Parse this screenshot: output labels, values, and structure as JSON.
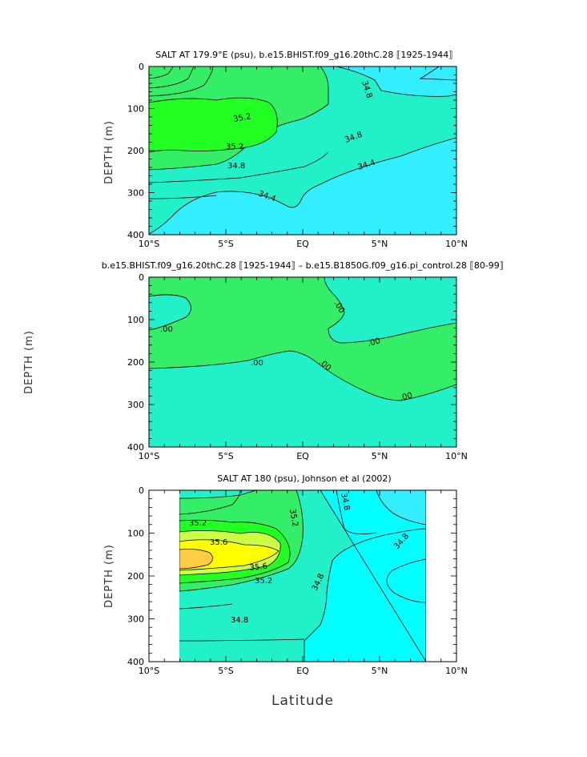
{
  "colors": {
    "cyan": "#33eeff",
    "aqua": "#00ffff",
    "sea": "#22f0c8",
    "green1": "#33ee66",
    "green2": "#22ff22",
    "yellowgreen": "#ccff44",
    "yellow": "#ffff00",
    "orange": "#ffcc44",
    "line": "#000000"
  },
  "x_label": "Latitude",
  "chart_data": [
    {
      "type": "contour",
      "title": "SALT AT 179.9°E (psu), b.e15.BHIST.f09_g16.20thC.28 ⟦1925-1944⟧",
      "ylabel": "DEPTH (m)",
      "xlim": [
        -10,
        10
      ],
      "ylim": [
        400,
        0
      ],
      "x_ticks": [
        "10°S",
        "5°S",
        "EQ",
        "5°N",
        "10°N"
      ],
      "y_ticks": [
        "0",
        "100",
        "200",
        "300",
        "400"
      ],
      "contour_labels": [
        "34.8",
        "35.2",
        "35.2",
        "34.8",
        "34.8",
        "34.4",
        "34.4"
      ],
      "data_extent": [
        -10,
        10
      ]
    },
    {
      "type": "contour",
      "title": "b.e15.BHIST.f09_g16.20thC.28 ⟦1925-1944⟧ – b.e15.B1850G.f09_g16.pi_control.28 ⟦80-99⟧",
      "ylabel": "DEPTH (m)",
      "xlim": [
        -10,
        10
      ],
      "ylim": [
        400,
        0
      ],
      "x_ticks": [
        "10°S",
        "5°S",
        "EQ",
        "5°N",
        "10°N"
      ],
      "y_ticks": [
        "0",
        "100",
        "200",
        "300",
        "400"
      ],
      "contour_labels": [
        ".00",
        ".00",
        ".00",
        ".00",
        ".00",
        ".00"
      ],
      "data_extent": [
        -10,
        10
      ]
    },
    {
      "type": "contour",
      "title": "SALT AT 180 (psu), Johnson et al (2002)",
      "ylabel": "DEPTH (m)",
      "xlim": [
        -10,
        10
      ],
      "ylim": [
        400,
        0
      ],
      "x_ticks": [
        "10°S",
        "5°S",
        "EQ",
        "5°N",
        "10°N"
      ],
      "y_ticks": [
        "0",
        "100",
        "200",
        "300",
        "400"
      ],
      "contour_labels": [
        "35.2",
        "35.6",
        "35.6",
        "35.2",
        "35.2",
        "34.8",
        "34.8",
        "34.8",
        "34.8"
      ],
      "data_extent": [
        -8,
        8
      ]
    }
  ]
}
